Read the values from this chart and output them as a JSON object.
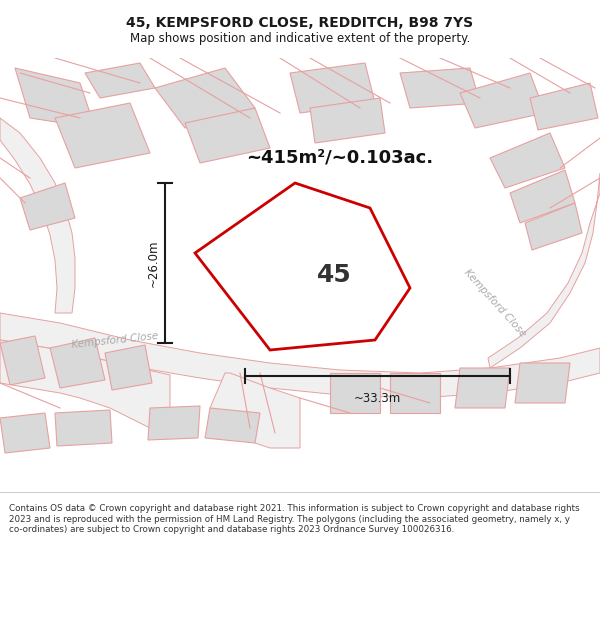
{
  "title_line1": "45, KEMPSFORD CLOSE, REDDITCH, B98 7YS",
  "title_line2": "Map shows position and indicative extent of the property.",
  "area_text": "~415m²/~0.103ac.",
  "plot_number": "45",
  "dim_vertical": "~26.0m",
  "dim_horizontal": "~33.3m",
  "street_label_left": "Kempsford Close",
  "street_label_right": "Kempsford Close",
  "footer_text": "Contains OS data © Crown copyright and database right 2021. This information is subject to Crown copyright and database rights 2023 and is reproduced with the permission of HM Land Registry. The polygons (including the associated geometry, namely x, y co-ordinates) are subject to Crown copyright and database rights 2023 Ordnance Survey 100026316.",
  "bg_color": "#ffffff",
  "plot_outline_color": "#cc0000",
  "building_fill": "#d9d9d9",
  "building_edge": "#e8a0a0",
  "road_edge_color": "#e8a0a0",
  "road_fill": "#f0f0f0",
  "dim_line_color": "#1a1a1a",
  "street_text_color": "#aaaaaa",
  "text_color": "#1a1a1a",
  "footer_text_color": "#333333"
}
